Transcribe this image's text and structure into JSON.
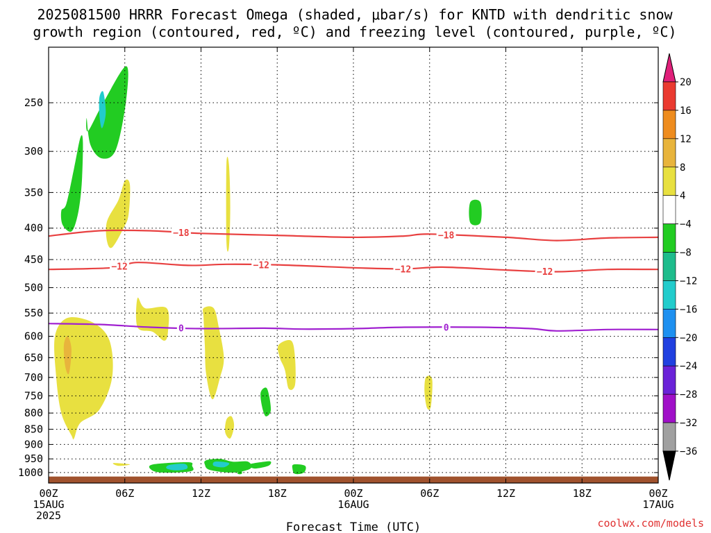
{
  "chart_data": {
    "type": "time-height contour",
    "title_lines": [
      "2025081500 HRRR Forecast Omega (shaded, μbar/s) for KNTD with dendritic snow",
      "growth region (contoured, red, ºC) and freezing level (contoured, purple, ºC)"
    ],
    "xlabel": "Forecast Time (UTC)",
    "ylabel": "",
    "credit": "coolwx.com/models",
    "x_range_hours": [
      0,
      48
    ],
    "x_ticks": [
      {
        "h": 0,
        "lines": [
          "00Z",
          "15AUG",
          "2025"
        ]
      },
      {
        "h": 6,
        "lines": [
          "06Z"
        ]
      },
      {
        "h": 12,
        "lines": [
          "12Z"
        ]
      },
      {
        "h": 18,
        "lines": [
          "18Z"
        ]
      },
      {
        "h": 24,
        "lines": [
          "00Z",
          "16AUG"
        ]
      },
      {
        "h": 30,
        "lines": [
          "06Z"
        ]
      },
      {
        "h": 36,
        "lines": [
          "12Z"
        ]
      },
      {
        "h": 42,
        "lines": [
          "18Z"
        ]
      },
      {
        "h": 48,
        "lines": [
          "00Z",
          "17AUG"
        ]
      }
    ],
    "y_ticks_hpa": [
      250,
      300,
      350,
      400,
      450,
      500,
      550,
      600,
      650,
      700,
      750,
      800,
      850,
      900,
      950,
      1000
    ],
    "y_top_hpa": 203,
    "y_bottom_hpa": 1040,
    "grid": true,
    "colorbar": {
      "units": "μbar/s",
      "labels": [
        "20",
        "16",
        "12",
        "8",
        "4",
        "−4",
        "−8",
        "−12",
        "−16",
        "−20",
        "−24",
        "−28",
        "−32",
        "−36"
      ],
      "colors": [
        "#e0207a",
        "#ea3a30",
        "#ee8c1e",
        "#e8b43c",
        "#e8e040",
        "#ffffff",
        "#22cc22",
        "#1ebc8c",
        "#22cccc",
        "#1e90f0",
        "#2040e0",
        "#6a22d8",
        "#a010c8",
        "#a0a0a0",
        "#000000"
      ]
    },
    "contours": [
      {
        "name": "dendritic snow growth region",
        "color": "#e84040",
        "level": -18,
        "labels": [
          "−18",
          "−18"
        ],
        "points": [
          [
            0,
            412
          ],
          [
            4,
            404
          ],
          [
            8,
            404
          ],
          [
            12,
            408
          ],
          [
            18,
            411
          ],
          [
            24,
            414
          ],
          [
            28,
            412
          ],
          [
            30,
            409
          ],
          [
            36,
            414
          ],
          [
            40,
            419
          ],
          [
            44,
            415
          ],
          [
            48,
            414
          ]
        ]
      },
      {
        "name": "dendritic snow growth region",
        "color": "#e84040",
        "level": -12,
        "labels": [
          "−12",
          "−12",
          "−12",
          "−12"
        ],
        "points": [
          [
            0,
            467
          ],
          [
            5,
            464
          ],
          [
            7,
            455
          ],
          [
            11,
            460
          ],
          [
            14,
            458
          ],
          [
            18,
            459
          ],
          [
            24,
            464
          ],
          [
            28,
            466
          ],
          [
            31,
            463
          ],
          [
            36,
            468
          ],
          [
            40,
            471
          ],
          [
            44,
            467
          ],
          [
            48,
            467
          ]
        ]
      },
      {
        "name": "freezing level",
        "color": "#a020d0",
        "level": 0,
        "labels": [
          "0",
          "0"
        ],
        "points": [
          [
            0,
            572
          ],
          [
            4,
            574
          ],
          [
            8,
            580
          ],
          [
            12,
            583
          ],
          [
            17,
            582
          ],
          [
            20,
            584
          ],
          [
            24,
            583
          ],
          [
            28,
            580
          ],
          [
            34,
            580
          ],
          [
            38,
            583
          ],
          [
            40,
            588
          ],
          [
            44,
            585
          ],
          [
            48,
            585
          ]
        ]
      }
    ],
    "shaded_regions": [
      {
        "value": -6,
        "color": "#22cc22",
        "points": [
          [
            3.1,
            278
          ],
          [
            4.3,
            250
          ],
          [
            6.1,
            218
          ],
          [
            6.1,
            248
          ],
          [
            5.3,
            298
          ],
          [
            4.2,
            308
          ],
          [
            3.3,
            293
          ],
          [
            3.0,
            265
          ]
        ]
      },
      {
        "value": -14,
        "color": "#22cccc",
        "points": [
          [
            4.0,
            245
          ],
          [
            4.3,
            240
          ],
          [
            4.5,
            260
          ],
          [
            4.2,
            275
          ],
          [
            4.0,
            262
          ]
        ]
      },
      {
        "value": -6,
        "color": "#22cc22",
        "points": [
          [
            1.4,
            365
          ],
          [
            2.0,
            320
          ],
          [
            2.5,
            285
          ],
          [
            2.7,
            290
          ],
          [
            2.6,
            340
          ],
          [
            2.3,
            380
          ],
          [
            1.8,
            405
          ],
          [
            1.1,
            395
          ],
          [
            1.0,
            375
          ]
        ]
      },
      {
        "value": 6,
        "color": "#e8e040",
        "points": [
          [
            4.6,
            390
          ],
          [
            5.5,
            360
          ],
          [
            6.0,
            335
          ],
          [
            6.4,
            340
          ],
          [
            6.3,
            380
          ],
          [
            5.9,
            400
          ],
          [
            5.0,
            430
          ],
          [
            4.6,
            420
          ]
        ]
      },
      {
        "value": 6,
        "color": "#e8e040",
        "points": [
          [
            14.0,
            315
          ],
          [
            14.2,
            315
          ],
          [
            14.3,
            370
          ],
          [
            14.2,
            430
          ],
          [
            14.0,
            420
          ]
        ]
      },
      {
        "value": -6,
        "color": "#22cc22",
        "points": [
          [
            33.2,
            363
          ],
          [
            34.0,
            363
          ],
          [
            34.0,
            392
          ],
          [
            33.2,
            392
          ]
        ]
      },
      {
        "value": 6,
        "color": "#e8e040",
        "points": [
          [
            0.5,
            600
          ],
          [
            1.5,
            560
          ],
          [
            3.5,
            570
          ],
          [
            4.8,
            610
          ],
          [
            5.0,
            700
          ],
          [
            4.0,
            790
          ],
          [
            2.5,
            830
          ],
          [
            2.0,
            880
          ],
          [
            1.8,
            870
          ],
          [
            1.0,
            800
          ],
          [
            0.6,
            700
          ]
        ]
      },
      {
        "value": 10,
        "color": "#e8b43c",
        "points": [
          [
            1.2,
            620
          ],
          [
            1.5,
            600
          ],
          [
            1.8,
            630
          ],
          [
            1.6,
            690
          ],
          [
            1.3,
            670
          ]
        ]
      },
      {
        "value": 6,
        "color": "#e8e040",
        "points": [
          [
            7.0,
            520
          ],
          [
            7.6,
            540
          ],
          [
            9.3,
            540
          ],
          [
            9.4,
            590
          ],
          [
            9.1,
            610
          ],
          [
            8.2,
            590
          ],
          [
            7.0,
            580
          ]
        ]
      },
      {
        "value": 6,
        "color": "#e8e040",
        "points": [
          [
            12.2,
            560
          ],
          [
            12.2,
            540
          ],
          [
            13.0,
            540
          ],
          [
            13.4,
            580
          ],
          [
            13.8,
            650
          ],
          [
            13.5,
            700
          ],
          [
            12.9,
            760
          ],
          [
            12.4,
            690
          ],
          [
            12.3,
            620
          ]
        ]
      },
      {
        "value": 6,
        "color": "#e8e040",
        "points": [
          [
            18.1,
            620
          ],
          [
            19.1,
            610
          ],
          [
            19.4,
            650
          ],
          [
            19.4,
            720
          ],
          [
            18.9,
            730
          ],
          [
            18.6,
            680
          ],
          [
            18.2,
            650
          ]
        ]
      },
      {
        "value": 6,
        "color": "#e8e040",
        "points": [
          [
            29.7,
            700
          ],
          [
            30.2,
            705
          ],
          [
            30.1,
            780
          ],
          [
            29.8,
            785
          ],
          [
            29.6,
            740
          ]
        ]
      },
      {
        "value": 6,
        "color": "#e8e040",
        "points": [
          [
            14.0,
            820
          ],
          [
            14.4,
            810
          ],
          [
            14.6,
            840
          ],
          [
            14.3,
            880
          ],
          [
            13.9,
            860
          ]
        ]
      },
      {
        "value": -6,
        "color": "#22cc22",
        "points": [
          [
            16.7,
            740
          ],
          [
            17.2,
            730
          ],
          [
            17.5,
            790
          ],
          [
            17.1,
            810
          ],
          [
            16.8,
            780
          ]
        ]
      },
      {
        "value": -6,
        "color": "#22cc22",
        "points": [
          [
            12.4,
            955
          ],
          [
            13.5,
            950
          ],
          [
            14.5,
            960
          ],
          [
            15.7,
            960
          ],
          [
            15.9,
            985
          ],
          [
            14.5,
            1000
          ],
          [
            12.7,
            990
          ],
          [
            12.3,
            970
          ]
        ]
      },
      {
        "value": -14,
        "color": "#22cccc",
        "points": [
          [
            13.1,
            960
          ],
          [
            14.2,
            965
          ],
          [
            13.8,
            980
          ],
          [
            13.0,
            975
          ]
        ]
      },
      {
        "value": -6,
        "color": "#22cc22",
        "points": [
          [
            15.8,
            970
          ],
          [
            17.0,
            960
          ],
          [
            17.5,
            960
          ],
          [
            17.3,
            975
          ],
          [
            16.2,
            985
          ]
        ]
      },
      {
        "value": -6,
        "color": "#22cc22",
        "points": [
          [
            19.3,
            970
          ],
          [
            20.2,
            975
          ],
          [
            20.1,
            1000
          ],
          [
            19.4,
            1005
          ],
          [
            19.2,
            985
          ]
        ]
      },
      {
        "value": -6,
        "color": "#22cc22",
        "points": [
          [
            8.2,
            970
          ],
          [
            11.0,
            962
          ],
          [
            11.3,
            975
          ],
          [
            11.2,
            995
          ],
          [
            9.0,
            1000
          ],
          [
            8.1,
            990
          ]
        ]
      },
      {
        "value": -14,
        "color": "#22cccc",
        "points": [
          [
            9.5,
            972
          ],
          [
            10.7,
            968
          ],
          [
            10.9,
            985
          ],
          [
            10.1,
            992
          ],
          [
            9.3,
            985
          ]
        ]
      },
      {
        "value": -6,
        "color": "#22cc22",
        "points": [
          [
            14.9,
            995
          ],
          [
            15.2,
            995
          ],
          [
            15.2,
            1005
          ],
          [
            14.9,
            1005
          ]
        ]
      },
      {
        "value": 6,
        "color": "#e8e040",
        "points": [
          [
            5.1,
            965
          ],
          [
            6.4,
            970
          ],
          [
            5.5,
            975
          ]
        ]
      }
    ],
    "terrain": {
      "color": "#a0522d",
      "top_hpa": 1015
    }
  }
}
